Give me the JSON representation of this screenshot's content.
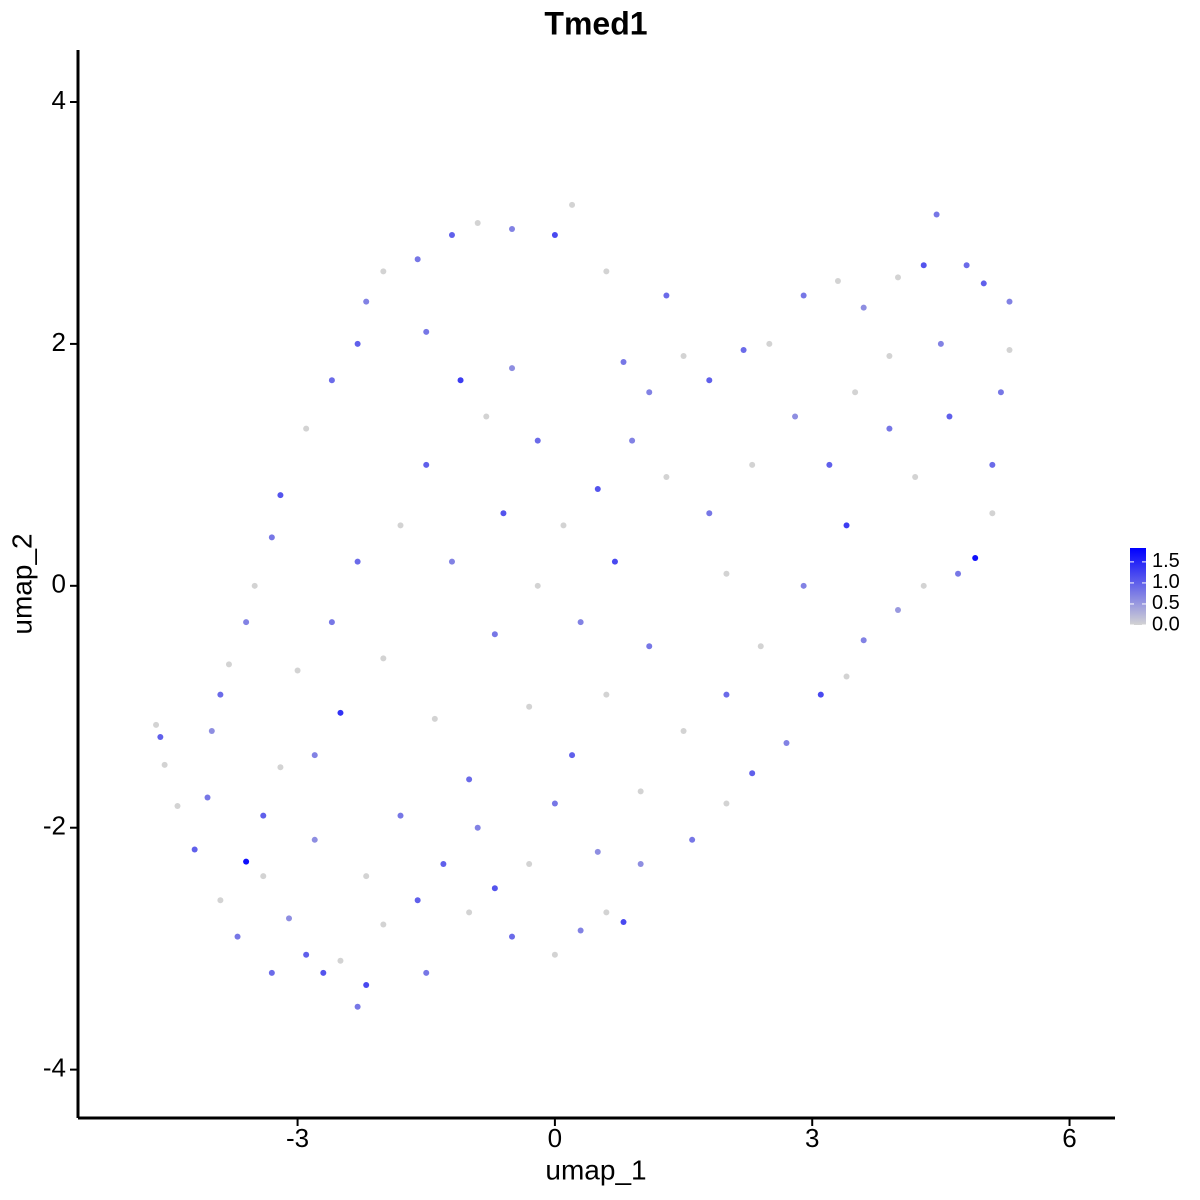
{
  "chart_data": {
    "type": "scatter",
    "title": "Tmed1",
    "xlabel": "umap_1",
    "ylabel": "umap_2",
    "xlim": [
      -5.56,
      6.53
    ],
    "ylim": [
      -4.4,
      4.43
    ],
    "xticks": [
      -3,
      0,
      3,
      6
    ],
    "yticks": [
      -4,
      -2,
      0,
      2,
      4
    ],
    "color_low": "#d3d3d3",
    "color_high": "#0000ff",
    "clim": [
      0,
      1.83
    ],
    "cticks": [
      {
        "value": 0,
        "label": "0.0"
      },
      0.5,
      {
        "value": 1,
        "label": "1.0"
      },
      1.5
    ],
    "x": [
      -4.6,
      -4.65,
      -4.55,
      -4.4,
      -4.2,
      -4.05,
      -3.9,
      -3.6,
      -3.7,
      -3.3,
      -3.1,
      -2.9,
      -2.7,
      -2.5,
      -2.2,
      -2.3,
      -2.0,
      -1.5,
      -1.3,
      -1.0,
      -0.7,
      -0.5,
      0.0,
      0.3,
      0.6,
      0.8,
      0.5,
      1.0,
      1.6,
      2.0,
      2.3,
      2.7,
      3.1,
      3.4,
      3.6,
      4.0,
      4.3,
      4.7,
      4.9,
      5.1,
      5.1,
      5.2,
      5.3,
      5.3,
      5.0,
      4.8,
      4.45,
      4.3,
      4.0,
      3.6,
      3.3,
      2.9,
      2.5,
      2.2,
      1.8,
      1.5,
      1.1,
      0.8,
      0.6,
      0.2,
      0.0,
      -0.5,
      -0.9,
      -1.2,
      -1.6,
      -2.0,
      -2.2,
      -2.3,
      -2.6,
      -2.9,
      -3.2,
      -3.3,
      -3.5,
      -3.6,
      -3.8,
      -3.9,
      -4.0,
      -3.4,
      -2.8,
      -2.5,
      -2.0,
      -2.6,
      -3.0,
      -2.3,
      -1.8,
      -1.5,
      -1.1,
      -1.5,
      -0.8,
      -0.5,
      -0.2,
      0.1,
      0.5,
      0.9,
      1.3,
      1.8,
      2.3,
      2.8,
      3.2,
      3.5,
      3.9,
      4.2,
      4.6,
      4.5,
      3.9,
      3.4,
      2.9,
      2.4,
      2.0,
      1.5,
      1.1,
      0.6,
      0.2,
      -0.3,
      -0.7,
      -0.2,
      0.3,
      0.7,
      -1.0,
      -1.4,
      -1.8,
      -2.2,
      -1.6,
      -0.9,
      -0.3,
      0.0,
      -2.8,
      -3.2,
      -1.2,
      -0.6,
      1.3,
      -3.4,
      2.0,
      1.0
    ],
    "y": [
      -1.25,
      -1.15,
      -1.48,
      -1.82,
      -2.18,
      -1.75,
      -2.6,
      -2.28,
      -2.9,
      -3.2,
      -2.75,
      -3.05,
      -3.2,
      -3.1,
      -3.3,
      -3.48,
      -2.8,
      -3.2,
      -2.3,
      -2.7,
      -2.5,
      -2.9,
      -3.05,
      -2.85,
      -2.7,
      -2.78,
      -2.2,
      -1.7,
      -2.1,
      -1.8,
      -1.55,
      -1.3,
      -0.9,
      -0.75,
      -0.45,
      -0.2,
      0.0,
      0.1,
      0.23,
      0.6,
      1.0,
      1.6,
      1.95,
      2.35,
      2.5,
      2.65,
      3.07,
      2.65,
      2.55,
      2.3,
      2.52,
      2.4,
      2.0,
      1.95,
      1.7,
      1.9,
      1.6,
      1.85,
      2.6,
      3.15,
      2.9,
      2.95,
      3.0,
      2.9,
      2.7,
      2.6,
      2.35,
      2.0,
      1.7,
      1.3,
      0.75,
      0.4,
      0.0,
      -0.3,
      -0.65,
      -0.9,
      -1.2,
      -1.9,
      -1.4,
      -1.05,
      -0.6,
      -0.3,
      -0.7,
      0.2,
      0.5,
      1.0,
      1.7,
      2.1,
      1.4,
      1.8,
      1.2,
      0.5,
      0.8,
      1.2,
      0.9,
      0.6,
      1.0,
      1.4,
      1.0,
      1.6,
      1.3,
      0.9,
      1.4,
      2.0,
      1.9,
      0.5,
      0.0,
      -0.5,
      -0.9,
      -1.2,
      -0.5,
      -0.9,
      -1.4,
      -1.0,
      -0.4,
      0.0,
      -0.3,
      0.2,
      -1.6,
      -1.1,
      -1.9,
      -2.4,
      -2.6,
      -2.0,
      -2.3,
      -1.8,
      -2.1,
      -1.5,
      0.2,
      0.6,
      2.4,
      -2.4,
      0.1,
      -2.3
    ],
    "values": [
      1.0,
      0,
      0,
      0,
      1.0,
      0.8,
      0,
      1.7,
      0.8,
      0.9,
      0.6,
      1.0,
      1.1,
      0,
      1.2,
      0.8,
      0,
      0.8,
      1.0,
      0,
      1.1,
      0.9,
      0,
      0.7,
      0,
      1.2,
      0.6,
      0,
      0.8,
      0,
      1.0,
      0.7,
      1.2,
      0,
      0.7,
      0.5,
      0,
      0.8,
      1.7,
      0,
      0.9,
      0.8,
      0,
      0.7,
      1.0,
      0.9,
      0.8,
      1.1,
      0,
      0.6,
      0,
      0.8,
      0,
      0.9,
      1.0,
      0,
      0.7,
      0.8,
      0,
      0,
      1.2,
      0.7,
      0,
      1.0,
      0.8,
      0,
      0.7,
      1.0,
      0.9,
      0,
      1.1,
      0.8,
      0,
      0.7,
      0,
      0.9,
      0.6,
      1.0,
      0.7,
      1.4,
      0,
      0.8,
      0,
      0.9,
      0,
      1.0,
      1.3,
      0.8,
      0,
      0.6,
      0.9,
      0,
      1.1,
      0.7,
      0,
      0.8,
      0,
      0.6,
      1.0,
      0,
      0.8,
      0,
      1.0,
      0.7,
      0,
      1.3,
      0.7,
      0,
      0.9,
      0,
      0.8,
      0,
      1.0,
      0,
      0.8,
      0,
      0.7,
      1.2,
      0.9,
      0,
      0.8,
      0,
      1.0,
      0.7,
      0,
      0.8,
      0.6,
      0,
      0.7,
      1.1,
      0.9,
      0,
      0,
      0.6
    ]
  }
}
